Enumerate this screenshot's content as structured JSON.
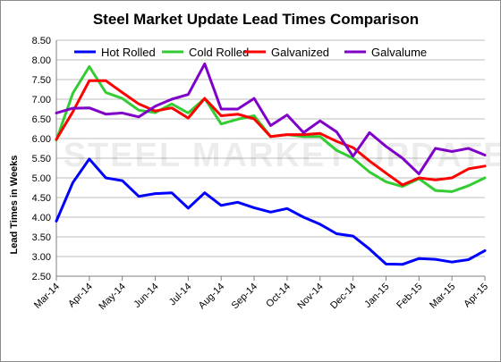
{
  "chart_data": {
    "type": "line",
    "title": "Steel Market Update Lead Times Comparison",
    "xlabel": "",
    "ylabel": "Lead Times in Weeks",
    "ylim": [
      2.5,
      8.5
    ],
    "yticks": [
      "2.50",
      "3.00",
      "3.50",
      "4.00",
      "4.50",
      "5.00",
      "5.50",
      "6.00",
      "6.50",
      "7.00",
      "7.50",
      "8.00",
      "8.50"
    ],
    "xticks": [
      "Mar-14",
      "Apr-14",
      "May-14",
      "Jun-14",
      "Jul-14",
      "Aug-14",
      "Sep-14",
      "Oct-14",
      "Nov-14",
      "Dec-14",
      "Jan-15",
      "Feb-15",
      "Mar-15",
      "Apr-15"
    ],
    "legend_position": "top",
    "grid": "horizontal",
    "watermark": "STEEL MARKET UPDATE",
    "series": [
      {
        "name": "Hot Rolled",
        "color": "#0000ff",
        "values": [
          3.9,
          4.88,
          5.48,
          5.0,
          4.93,
          4.53,
          4.6,
          4.62,
          4.23,
          4.62,
          4.3,
          4.38,
          4.24,
          4.13,
          4.22,
          4.0,
          3.82,
          3.58,
          3.52,
          3.19,
          2.81,
          2.8,
          2.95,
          2.93,
          2.86,
          2.92,
          3.15
        ]
      },
      {
        "name": "Cold Rolled",
        "color": "#33cc33",
        "values": [
          5.96,
          7.15,
          7.83,
          7.17,
          7.02,
          6.72,
          6.66,
          6.88,
          6.65,
          7.02,
          6.37,
          6.49,
          6.58,
          6.05,
          6.1,
          6.05,
          6.05,
          5.7,
          5.5,
          5.15,
          4.9,
          4.78,
          4.98,
          4.68,
          4.65,
          4.8,
          5.0
        ]
      },
      {
        "name": "Galvanized",
        "color": "#ff0000",
        "values": [
          5.98,
          6.68,
          7.47,
          7.47,
          7.17,
          6.88,
          6.7,
          6.78,
          6.52,
          7.02,
          6.58,
          6.62,
          6.5,
          6.05,
          6.1,
          6.1,
          6.13,
          5.93,
          5.77,
          5.43,
          5.12,
          4.82,
          5.0,
          4.95,
          5.0,
          5.23,
          5.3
        ]
      },
      {
        "name": "Galvalume",
        "color": "#7f00c8",
        "values": [
          6.65,
          6.77,
          6.78,
          6.62,
          6.65,
          6.55,
          6.82,
          7.0,
          7.12,
          7.9,
          6.75,
          6.75,
          7.02,
          6.33,
          6.6,
          6.15,
          6.45,
          6.17,
          5.55,
          6.15,
          5.8,
          5.5,
          5.1,
          5.75,
          5.67,
          5.75,
          5.58
        ]
      }
    ]
  }
}
